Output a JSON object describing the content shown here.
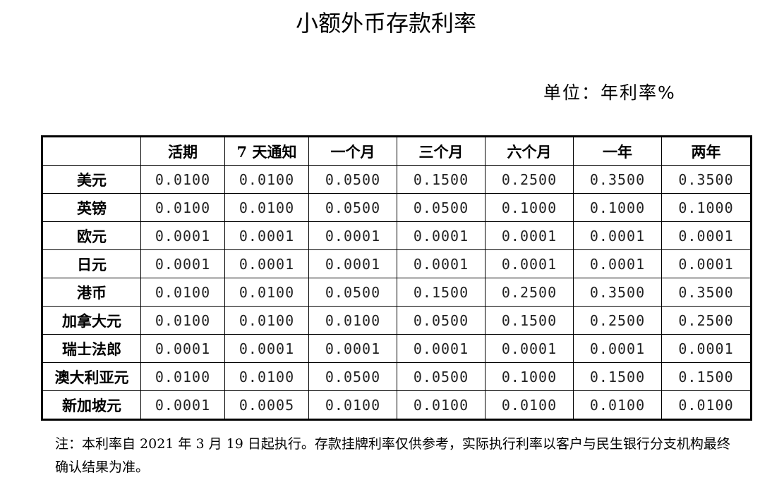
{
  "header": {
    "title": "小额外币存款利率",
    "unit": "单位：年利率%"
  },
  "table": {
    "columns": [
      "",
      "活期",
      "7 天通知",
      "一个月",
      "三个月",
      "六个月",
      "一年",
      "两年"
    ],
    "rows": [
      [
        "美元",
        "0.0100",
        "0.0100",
        "0.0500",
        "0.1500",
        "0.2500",
        "0.3500",
        "0.3500"
      ],
      [
        "英镑",
        "0.0100",
        "0.0100",
        "0.0500",
        "0.0500",
        "0.1000",
        "0.1000",
        "0.1000"
      ],
      [
        "欧元",
        "0.0001",
        "0.0001",
        "0.0001",
        "0.0001",
        "0.0001",
        "0.0001",
        "0.0001"
      ],
      [
        "日元",
        "0.0001",
        "0.0001",
        "0.0001",
        "0.0001",
        "0.0001",
        "0.0001",
        "0.0001"
      ],
      [
        "港币",
        "0.0100",
        "0.0100",
        "0.0500",
        "0.1500",
        "0.2500",
        "0.3500",
        "0.3500"
      ],
      [
        "加拿大元",
        "0.0100",
        "0.0100",
        "0.0100",
        "0.0500",
        "0.1500",
        "0.2500",
        "0.2500"
      ],
      [
        "瑞士法郎",
        "0.0001",
        "0.0001",
        "0.0001",
        "0.0001",
        "0.0001",
        "0.0001",
        "0.0001"
      ],
      [
        "澳大利亚元",
        "0.0100",
        "0.0100",
        "0.0500",
        "0.0500",
        "0.1000",
        "0.1500",
        "0.1500"
      ],
      [
        "新加坡元",
        "0.0001",
        "0.0005",
        "0.0100",
        "0.0100",
        "0.0100",
        "0.0100",
        "0.0100"
      ]
    ]
  },
  "note": "注：本利率自 2021 年 3 月 19 日起执行。存款挂牌利率仅供参考，实际执行利率以客户与民生银行分支机构最终确认结果为准。"
}
